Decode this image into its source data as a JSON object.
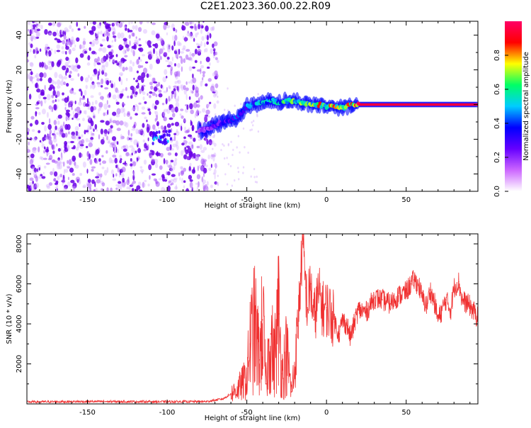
{
  "title": "C2E1.2023.360.00.22.R09",
  "colors": {
    "signal_red": "#f03030",
    "scatter_purple": "#7000e0",
    "colorbar": [
      "#ffffff",
      "#cc66ff",
      "#6600ff",
      "#0000ff",
      "#00ccff",
      "#00ff66",
      "#ffff00",
      "#ff0000",
      "#ff0066"
    ]
  },
  "chart_data": [
    {
      "type": "heatmap",
      "name": "spectrogram",
      "xlabel": "Height of straight line (km)",
      "ylabel": "Frequency (Hz)",
      "xlim": [
        -188,
        95
      ],
      "ylim": [
        -50,
        48
      ],
      "xticks": [
        -150,
        -100,
        -50,
        0,
        50
      ],
      "yticks": [
        -40,
        -20,
        0,
        20,
        40
      ],
      "ridge": {
        "x": [
          -80,
          -75,
          -70,
          -65,
          -60,
          -55,
          -50,
          -45,
          -40,
          -35,
          -30,
          -25,
          -20,
          -15,
          -10,
          -5,
          0,
          5,
          10,
          15,
          20,
          30,
          40,
          50,
          60,
          70,
          80,
          95
        ],
        "y": [
          -15,
          -14,
          -12,
          -10,
          -9,
          -7,
          -1,
          0,
          1,
          3,
          1,
          2,
          2,
          1,
          0,
          0,
          -1,
          -1,
          -2,
          0,
          0,
          0,
          0,
          0,
          0,
          0,
          0,
          0
        ],
        "amplitude": [
          0.2,
          0.25,
          0.3,
          0.35,
          0.4,
          0.45,
          0.5,
          0.55,
          0.55,
          0.6,
          0.6,
          0.7,
          0.75,
          0.8,
          0.8,
          0.85,
          0.85,
          0.9,
          0.9,
          0.9,
          0.95,
          0.95,
          0.95,
          0.95,
          0.95,
          0.95,
          0.95,
          0.95
        ]
      },
      "noise_region_x": [
        -188,
        -72
      ],
      "noise_cluster": {
        "x": -103,
        "y": -19
      }
    },
    {
      "type": "colorbar",
      "label": "Normalized spectral amplitude",
      "range": [
        0.0,
        1.0
      ],
      "ticks": [
        "0.0",
        "0.2",
        "0.4",
        "0.6",
        "0.8"
      ]
    },
    {
      "type": "line",
      "name": "snr",
      "xlabel": "Height of straight line (km)",
      "ylabel": "SNR (10 * v/v)",
      "xlim": [
        -188,
        95
      ],
      "ylim": [
        0,
        8500
      ],
      "xticks": [
        -150,
        -100,
        -50,
        0,
        50
      ],
      "yticks": [
        2000,
        4000,
        6000,
        8000
      ],
      "x": [
        -188,
        -150,
        -100,
        -75,
        -65,
        -60,
        -55,
        -50,
        -48,
        -45,
        -42,
        -40,
        -38,
        -35,
        -33,
        -30,
        -28,
        -25,
        -22,
        -20,
        -18,
        -15,
        -13,
        -12,
        -10,
        -8,
        -5,
        -2,
        0,
        3,
        5,
        8,
        10,
        13,
        15,
        18,
        20,
        25,
        30,
        35,
        40,
        45,
        50,
        53,
        55,
        58,
        60,
        63,
        65,
        68,
        70,
        75,
        78,
        80,
        83,
        85,
        90,
        95
      ],
      "y": [
        100,
        120,
        110,
        120,
        250,
        500,
        800,
        1300,
        3000,
        3800,
        2200,
        4200,
        1000,
        3500,
        2000,
        4500,
        1500,
        2600,
        600,
        1700,
        3900,
        8000,
        5800,
        4800,
        6000,
        4200,
        5500,
        4700,
        4800,
        4500,
        4100,
        3500,
        4200,
        3900,
        3300,
        4200,
        4700,
        4600,
        5300,
        5200,
        5000,
        5400,
        5600,
        6000,
        6200,
        5900,
        5300,
        4900,
        5700,
        5000,
        4200,
        5200,
        4700,
        5800,
        6100,
        5200,
        4900,
        4300
      ]
    }
  ]
}
